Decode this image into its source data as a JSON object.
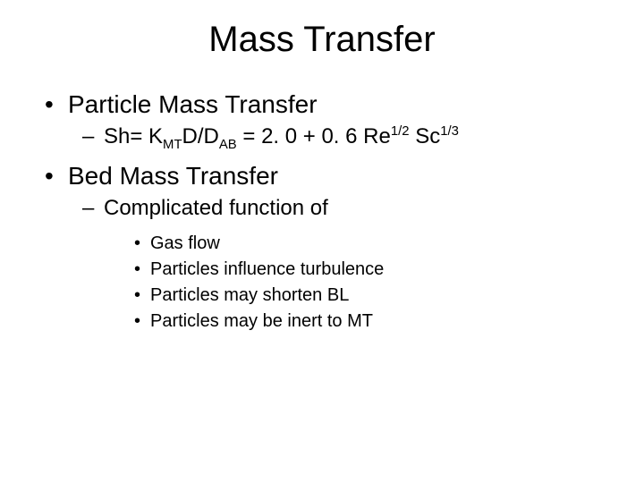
{
  "title": "Mass Transfer",
  "b1": "Particle Mass Transfer",
  "eq": {
    "sh": "Sh= K",
    "mt": "MT",
    "dd": "D/D",
    "ab": "AB",
    "mid": " = 2. 0 + 0. 6 Re",
    "reExp": "1/2",
    "sc": " Sc",
    "scExp": "1/3"
  },
  "b2": "Bed Mass Transfer",
  "b2s": "Complicated function of",
  "i1": "Gas flow",
  "i2": "Particles influence turbulence",
  "i3": "Particles may shorten BL",
  "i4": "Particles may be inert to MT"
}
